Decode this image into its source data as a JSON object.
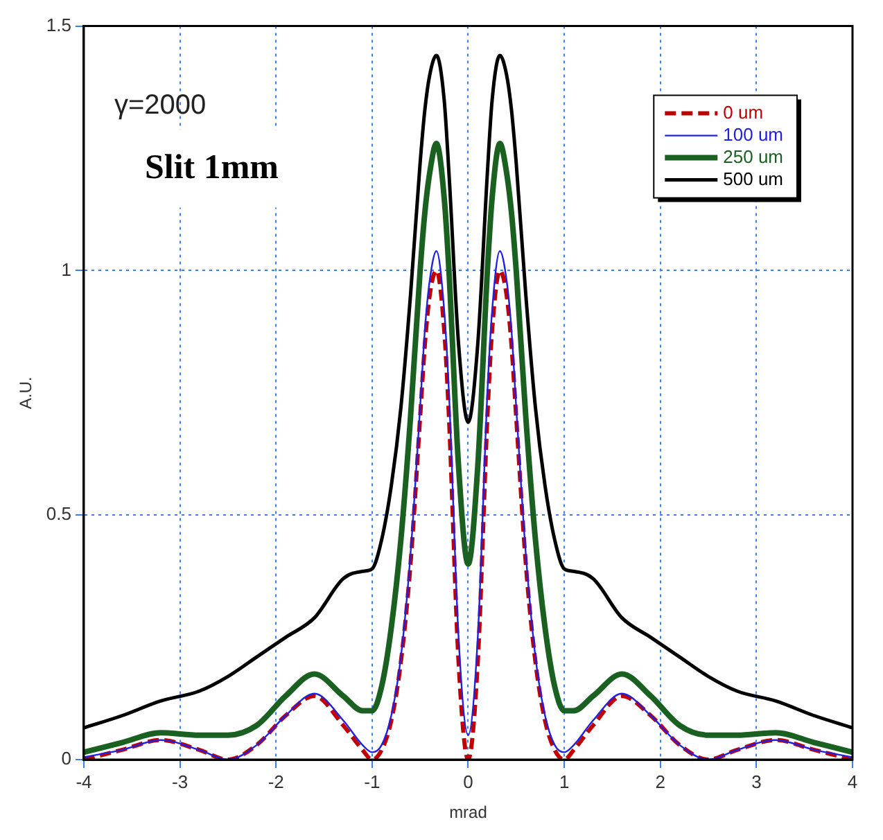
{
  "chart_data": {
    "type": "line",
    "xlabel": "mrad",
    "ylabel": "A.U.",
    "annotations": [
      "γ=2000",
      "Slit 1mm"
    ],
    "x": [
      -4,
      -3.6,
      -3.2,
      -2.8,
      -2.5,
      -2.2,
      -1.9,
      -1.6,
      -1.3,
      -1.1,
      -1,
      -0.9,
      -0.8,
      -0.7,
      -0.6,
      -0.5,
      -0.45,
      -0.4,
      -0.33,
      -0.25,
      -0.2,
      -0.1,
      0,
      0.1,
      0.2,
      0.25,
      0.33,
      0.4,
      0.45,
      0.5,
      0.6,
      0.7,
      0.8,
      0.9,
      1,
      1.1,
      1.3,
      1.6,
      1.9,
      2.2,
      2.5,
      2.8,
      3.2,
      3.6,
      4
    ],
    "series": [
      {
        "name": "0 um",
        "color": "#c00000",
        "line_style": "dashed",
        "values": [
          0,
          0.02,
          0.04,
          0.02,
          0,
          0.03,
          0.09,
          0.13,
          0.07,
          0.02,
          0,
          0.02,
          0.08,
          0.2,
          0.4,
          0.7,
          0.85,
          0.95,
          1.0,
          0.88,
          0.7,
          0.2,
          0,
          0.2,
          0.7,
          0.88,
          1.0,
          0.95,
          0.85,
          0.7,
          0.4,
          0.2,
          0.08,
          0.02,
          0,
          0.02,
          0.07,
          0.13,
          0.09,
          0.03,
          0,
          0.02,
          0.04,
          0.02,
          0
        ]
      },
      {
        "name": "100 um",
        "color": "#2020e0",
        "values": [
          0.005,
          0.02,
          0.04,
          0.02,
          0,
          0.03,
          0.09,
          0.135,
          0.08,
          0.03,
          0.015,
          0.03,
          0.09,
          0.21,
          0.42,
          0.72,
          0.88,
          0.98,
          1.04,
          0.92,
          0.75,
          0.25,
          0.05,
          0.25,
          0.75,
          0.92,
          1.04,
          0.98,
          0.88,
          0.72,
          0.42,
          0.21,
          0.09,
          0.03,
          0.015,
          0.03,
          0.08,
          0.135,
          0.09,
          0.03,
          0,
          0.02,
          0.04,
          0.02,
          0.005
        ]
      },
      {
        "name": "250 um",
        "color": "#1a6020",
        "values": [
          0.015,
          0.035,
          0.055,
          0.05,
          0.05,
          0.07,
          0.13,
          0.175,
          0.13,
          0.1,
          0.1,
          0.15,
          0.27,
          0.45,
          0.7,
          1.0,
          1.12,
          1.2,
          1.26,
          1.15,
          1.0,
          0.6,
          0.4,
          0.6,
          1.0,
          1.15,
          1.26,
          1.2,
          1.12,
          1.0,
          0.7,
          0.45,
          0.27,
          0.15,
          0.1,
          0.1,
          0.13,
          0.175,
          0.13,
          0.07,
          0.05,
          0.05,
          0.055,
          0.035,
          0.015
        ]
      },
      {
        "name": "500 um",
        "color": "#000000",
        "values": [
          0.065,
          0.09,
          0.12,
          0.14,
          0.17,
          0.21,
          0.25,
          0.29,
          0.37,
          0.385,
          0.39,
          0.45,
          0.56,
          0.72,
          0.95,
          1.22,
          1.33,
          1.4,
          1.44,
          1.35,
          1.2,
          0.85,
          0.69,
          0.85,
          1.2,
          1.35,
          1.44,
          1.4,
          1.33,
          1.22,
          0.95,
          0.72,
          0.56,
          0.45,
          0.39,
          0.385,
          0.37,
          0.29,
          0.25,
          0.21,
          0.17,
          0.14,
          0.12,
          0.09,
          0.065
        ]
      }
    ],
    "xlim": [
      -4,
      4
    ],
    "xticks": [
      -4,
      -3,
      -2,
      -1,
      0,
      1,
      2,
      3,
      4
    ],
    "ylim": [
      0,
      1.5
    ],
    "yticks": [
      0,
      0.5,
      1,
      1.5
    ],
    "grid": true,
    "legend": "top right"
  }
}
